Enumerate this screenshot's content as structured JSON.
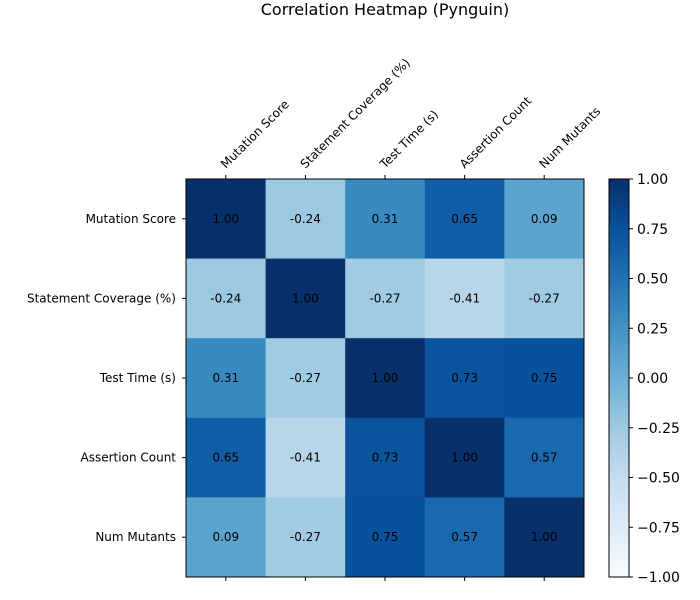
{
  "chart_data": {
    "type": "heatmap",
    "title": "Correlation Heatmap (Pynguin)",
    "x_labels": [
      "Mutation Score",
      "Statement Coverage (%)",
      "Test Time (s)",
      "Assertion Count",
      "Num Mutants"
    ],
    "y_labels": [
      "Mutation Score",
      "Statement Coverage (%)",
      "Test Time (s)",
      "Assertion Count",
      "Num Mutants"
    ],
    "matrix": [
      [
        1.0,
        -0.24,
        0.31,
        0.65,
        0.09
      ],
      [
        -0.24,
        1.0,
        -0.27,
        -0.41,
        -0.27
      ],
      [
        0.31,
        -0.27,
        1.0,
        0.73,
        0.75
      ],
      [
        0.65,
        -0.41,
        0.73,
        1.0,
        0.57
      ],
      [
        0.09,
        -0.27,
        0.75,
        0.57,
        1.0
      ]
    ],
    "value_format": "2 decimals",
    "colormap": "Blues",
    "vmin": -1.0,
    "vmax": 1.0,
    "colorbar_ticks": [
      "1.00",
      "0.75",
      "0.50",
      "0.25",
      "0.00",
      "−0.25",
      "−0.50",
      "−0.75",
      "−1.00"
    ],
    "colorbar_tick_values": [
      1.0,
      0.75,
      0.5,
      0.25,
      0.0,
      -0.25,
      -0.5,
      -0.75,
      -1.0
    ]
  }
}
